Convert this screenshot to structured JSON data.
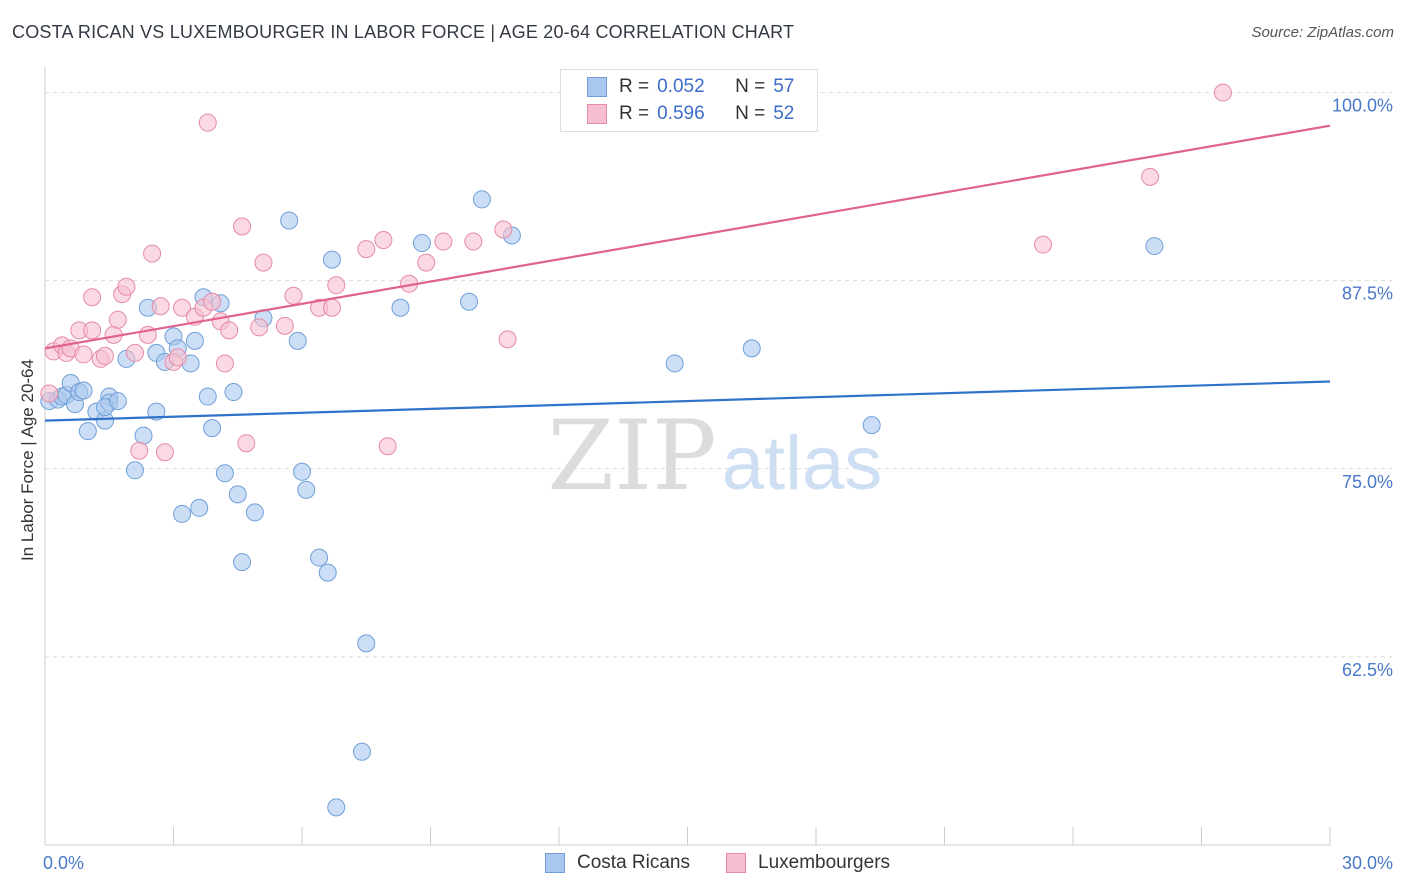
{
  "title": "COSTA RICAN VS LUXEMBOURGER IN LABOR FORCE | AGE 20-64 CORRELATION CHART",
  "source": "Source: ZipAtlas.com",
  "watermark": {
    "zip": "ZIP",
    "atlas": "atlas"
  },
  "colors": {
    "blue_fill": "#aac8ee",
    "blue_stroke": "#6f9fd8",
    "blue_line": "#2f72c9",
    "pink_fill": "#f6bfd0",
    "pink_stroke": "#e68aa8",
    "pink_line": "#e0638c",
    "tick_text": "#4a78c8",
    "grid": "#d9d9d9"
  },
  "legend": {
    "rows": [
      {
        "r_label": "R =",
        "r_value": "0.052",
        "n_label": "N =",
        "n_value": "57"
      },
      {
        "r_label": "R =",
        "r_value": "0.596",
        "n_label": "N =",
        "n_value": "52"
      }
    ]
  },
  "bottom_legend": {
    "series1": "Costa Ricans",
    "series2": "Luxembourgers"
  },
  "chart_data": {
    "type": "scatter",
    "title": "COSTA RICAN VS LUXEMBOURGER IN LABOR FORCE | AGE 20-64 CORRELATION CHART",
    "xlabel": "",
    "ylabel": "In Labor Force | Age 20-64",
    "xlim": [
      0,
      30
    ],
    "ylim": [
      50,
      101.5
    ],
    "x_tick_labels": [
      "0.0%",
      "30.0%"
    ],
    "y_ticks": [
      62.5,
      75.0,
      87.5,
      100.0
    ],
    "y_tick_labels": [
      "62.5%",
      "75.0%",
      "87.5%",
      "100.0%"
    ],
    "series": [
      {
        "name": "Costa Ricans",
        "r": 0.052,
        "n": 57,
        "trend": {
          "x": [
            0,
            30
          ],
          "y": [
            78.2,
            80.8
          ]
        },
        "points": [
          [
            0.1,
            79.5
          ],
          [
            0.3,
            79.6
          ],
          [
            0.4,
            79.8
          ],
          [
            0.5,
            79.9
          ],
          [
            0.6,
            80.7
          ],
          [
            0.7,
            79.3
          ],
          [
            0.8,
            80.1
          ],
          [
            0.9,
            80.2
          ],
          [
            1.0,
            77.5
          ],
          [
            1.2,
            78.8
          ],
          [
            1.4,
            78.2
          ],
          [
            1.5,
            79.8
          ],
          [
            1.5,
            79.4
          ],
          [
            1.4,
            79.1
          ],
          [
            1.7,
            79.5
          ],
          [
            1.9,
            82.3
          ],
          [
            2.1,
            74.9
          ],
          [
            2.3,
            77.2
          ],
          [
            2.4,
            85.7
          ],
          [
            2.6,
            82.7
          ],
          [
            2.6,
            78.8
          ],
          [
            2.8,
            82.1
          ],
          [
            3.0,
            83.8
          ],
          [
            3.1,
            83.0
          ],
          [
            3.2,
            72.0
          ],
          [
            3.4,
            82.0
          ],
          [
            3.5,
            83.5
          ],
          [
            3.6,
            72.4
          ],
          [
            3.7,
            86.4
          ],
          [
            3.8,
            79.8
          ],
          [
            3.9,
            77.7
          ],
          [
            4.1,
            86.0
          ],
          [
            4.2,
            74.7
          ],
          [
            4.4,
            80.1
          ],
          [
            4.5,
            73.3
          ],
          [
            4.6,
            68.8
          ],
          [
            4.9,
            72.1
          ],
          [
            5.1,
            85.0
          ],
          [
            5.7,
            91.5
          ],
          [
            5.9,
            83.5
          ],
          [
            6.0,
            74.8
          ],
          [
            6.1,
            73.6
          ],
          [
            6.4,
            69.1
          ],
          [
            6.6,
            68.1
          ],
          [
            6.7,
            88.9
          ],
          [
            6.8,
            52.5
          ],
          [
            7.4,
            56.2
          ],
          [
            7.5,
            63.4
          ],
          [
            8.3,
            85.7
          ],
          [
            8.8,
            90.0
          ],
          [
            9.9,
            86.1
          ],
          [
            10.2,
            92.9
          ],
          [
            10.9,
            90.5
          ],
          [
            14.7,
            82.0
          ],
          [
            16.5,
            83.0
          ],
          [
            19.3,
            77.9
          ],
          [
            25.9,
            89.8
          ]
        ]
      },
      {
        "name": "Luxembourgers",
        "r": 0.596,
        "n": 52,
        "trend": {
          "x": [
            0,
            30
          ],
          "y": [
            83.0,
            97.8
          ]
        },
        "points": [
          [
            0.1,
            80.0
          ],
          [
            0.2,
            82.8
          ],
          [
            0.4,
            83.2
          ],
          [
            0.5,
            82.7
          ],
          [
            0.6,
            83.0
          ],
          [
            0.8,
            84.2
          ],
          [
            0.9,
            82.6
          ],
          [
            1.1,
            84.2
          ],
          [
            1.1,
            86.4
          ],
          [
            1.3,
            82.3
          ],
          [
            1.4,
            82.5
          ],
          [
            1.6,
            83.9
          ],
          [
            1.7,
            84.9
          ],
          [
            1.8,
            86.6
          ],
          [
            1.9,
            87.1
          ],
          [
            2.1,
            82.7
          ],
          [
            2.2,
            76.2
          ],
          [
            2.4,
            83.9
          ],
          [
            2.5,
            89.3
          ],
          [
            2.7,
            85.8
          ],
          [
            2.8,
            76.1
          ],
          [
            3.0,
            82.1
          ],
          [
            3.1,
            82.4
          ],
          [
            3.2,
            85.7
          ],
          [
            3.5,
            85.1
          ],
          [
            3.7,
            85.7
          ],
          [
            3.8,
            98.0
          ],
          [
            3.9,
            86.1
          ],
          [
            4.1,
            84.8
          ],
          [
            4.2,
            82.0
          ],
          [
            4.3,
            84.2
          ],
          [
            4.6,
            91.1
          ],
          [
            4.7,
            76.7
          ],
          [
            5.0,
            84.4
          ],
          [
            5.1,
            88.7
          ],
          [
            5.6,
            84.5
          ],
          [
            5.8,
            86.5
          ],
          [
            6.4,
            85.7
          ],
          [
            6.7,
            85.7
          ],
          [
            6.8,
            87.2
          ],
          [
            7.5,
            89.6
          ],
          [
            7.9,
            90.2
          ],
          [
            8.0,
            76.5
          ],
          [
            8.5,
            87.3
          ],
          [
            8.9,
            88.7
          ],
          [
            9.3,
            90.1
          ],
          [
            10.0,
            90.1
          ],
          [
            10.7,
            90.9
          ],
          [
            10.8,
            83.6
          ],
          [
            23.3,
            89.9
          ],
          [
            25.8,
            94.4
          ],
          [
            27.5,
            100.0
          ]
        ]
      }
    ]
  }
}
